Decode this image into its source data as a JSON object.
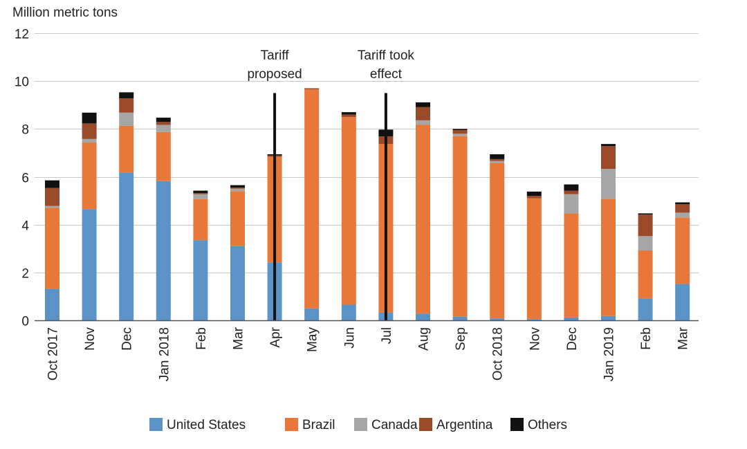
{
  "chart_data": {
    "type": "bar",
    "stacked": true,
    "ylabel": "Million metric tons",
    "ylim": [
      0,
      12
    ],
    "yticks": [
      0,
      2,
      4,
      6,
      8,
      10,
      12
    ],
    "grid": true,
    "legend_position": "bottom",
    "categories": [
      "Oct 2017",
      "Nov",
      "Dec",
      "Jan 2018",
      "Feb",
      "Mar",
      "Apr",
      "May",
      "Jun",
      "Jul",
      "Aug",
      "Sep",
      "Oct 2018",
      "Nov",
      "Dec",
      "Jan 2019",
      "Feb",
      "Mar"
    ],
    "series": [
      {
        "name": "United States",
        "color": "#5b93c7",
        "values": [
          1.32,
          4.65,
          6.18,
          5.82,
          3.35,
          3.1,
          2.42,
          0.5,
          0.65,
          0.32,
          0.28,
          0.15,
          0.08,
          0.05,
          0.12,
          0.18,
          0.92,
          1.52
        ]
      },
      {
        "name": "Brazil",
        "color": "#e8783a",
        "values": [
          3.38,
          2.78,
          1.95,
          2.05,
          1.72,
          2.3,
          4.42,
          9.15,
          7.85,
          7.05,
          7.9,
          7.55,
          6.5,
          5.05,
          4.35,
          4.9,
          2.0,
          2.78
        ]
      },
      {
        "name": "Canada",
        "color": "#a6a6a6",
        "values": [
          0.08,
          0.15,
          0.55,
          0.3,
          0.2,
          0.1,
          0.0,
          0.0,
          0.0,
          0.0,
          0.18,
          0.1,
          0.08,
          0.0,
          0.8,
          1.25,
          0.6,
          0.2
        ]
      },
      {
        "name": "Argentina",
        "color": "#9a4a28",
        "values": [
          0.75,
          0.65,
          0.6,
          0.12,
          0.05,
          0.05,
          0.05,
          0.05,
          0.1,
          0.32,
          0.55,
          0.15,
          0.08,
          0.1,
          0.15,
          0.95,
          0.9,
          0.35
        ]
      },
      {
        "name": "Others",
        "color": "#111111",
        "values": [
          0.32,
          0.45,
          0.25,
          0.18,
          0.1,
          0.1,
          0.05,
          0.0,
          0.1,
          0.28,
          0.2,
          0.05,
          0.2,
          0.18,
          0.26,
          0.09,
          0.05,
          0.08
        ]
      }
    ],
    "annotations": [
      {
        "lines": [
          "Tariff",
          "proposed"
        ],
        "category_index": 6,
        "line_top": 9.5
      },
      {
        "lines": [
          "Tariff took",
          "effect"
        ],
        "category_index": 9,
        "line_top": 9.5
      }
    ]
  }
}
